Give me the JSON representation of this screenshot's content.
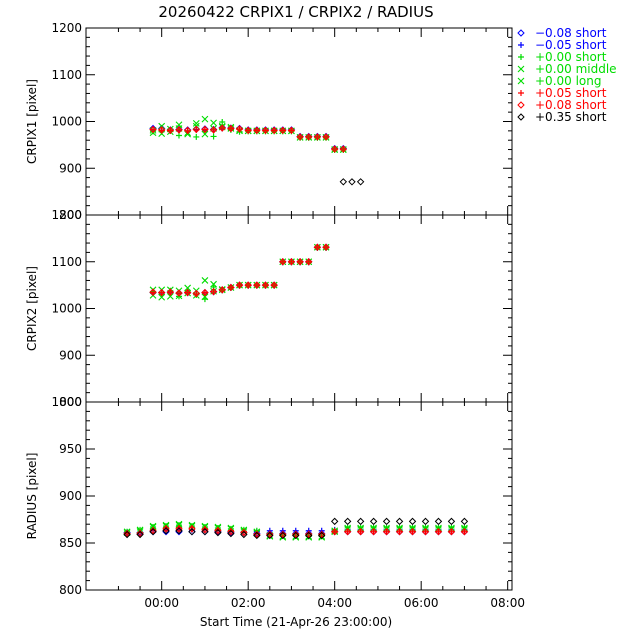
{
  "title": "20260422 CRPIX1 / CRPIX2 / RADIUS",
  "xlabel": "Start Time (21-Apr-26 23:00:00)",
  "x_tick_labels": [
    "00:00",
    "02:00",
    "04:00",
    "06:00",
    "08:00"
  ],
  "legend": [
    {
      "marker": "diamond",
      "label": "−0.08 short",
      "color": "#0000ff"
    },
    {
      "marker": "plus",
      "label": "−0.05 short",
      "color": "#0000ff"
    },
    {
      "marker": "plus",
      "label": "+0.00 short",
      "color": "#00dd00"
    },
    {
      "marker": "cross",
      "label": "+0.00 middle",
      "color": "#00dd00"
    },
    {
      "marker": "cross",
      "label": "+0.00 long",
      "color": "#00dd00"
    },
    {
      "marker": "plus",
      "label": "+0.05 short",
      "color": "#ff0000"
    },
    {
      "marker": "diamond",
      "label": "+0.08 short",
      "color": "#ff0000"
    },
    {
      "marker": "diamond",
      "label": "+0.35 short",
      "color": "#000000"
    }
  ],
  "chart_data": [
    {
      "type": "scatter",
      "ylabel": "CRPIX1 [pixel]",
      "x_unit": "hours after 21-Apr-26 23:00:00",
      "xlim": [
        -0.75,
        9.1
      ],
      "ylim": [
        800,
        1200
      ],
      "yticks": [
        800,
        900,
        1000,
        1100,
        1200
      ],
      "x": [
        0.8,
        1.0,
        1.2,
        1.4,
        1.6,
        1.8,
        2.0,
        2.2,
        2.4,
        2.6,
        2.8,
        3.0,
        3.2,
        3.4,
        3.6,
        3.8,
        4.0,
        4.2,
        4.4,
        4.6,
        4.8,
        5.0,
        5.2,
        5.4,
        5.6
      ],
      "series": [
        {
          "name": "−0.08 short",
          "color": "#0000ff",
          "marker": "diamond",
          "values": [
            985,
            985,
            982,
            983,
            982,
            984,
            984,
            983,
            987,
            986,
            985,
            982,
            982,
            982,
            982,
            982,
            982,
            968,
            968,
            968,
            968,
            942,
            942,
            null,
            null
          ]
        },
        {
          "name": "−0.05 short",
          "color": "#0000ff",
          "marker": "plus",
          "values": [
            982,
            981,
            980,
            981,
            980,
            983,
            982,
            982,
            985,
            984,
            983,
            981,
            981,
            981,
            981,
            981,
            981,
            967,
            967,
            967,
            967,
            941,
            941,
            null,
            null
          ]
        },
        {
          "name": "+0.00 short",
          "color": "#00dd00",
          "marker": "plus",
          "values": [
            979,
            978,
            980,
            970,
            979,
            967,
            979,
            968,
            999,
            982,
            978,
            979,
            979,
            979,
            979,
            979,
            979,
            965,
            965,
            965,
            965,
            939,
            939,
            null,
            null
          ]
        },
        {
          "name": "+0.00 middle",
          "color": "#00dd00",
          "marker": "cross",
          "values": [
            981,
            990,
            978,
            993,
            976,
            990,
            1005,
            985,
            988,
            985,
            980,
            980,
            980,
            980,
            980,
            980,
            980,
            966,
            966,
            966,
            966,
            940,
            940,
            null,
            null
          ]
        },
        {
          "name": "+0.00 long",
          "color": "#00dd00",
          "marker": "cross",
          "values": [
            976,
            974,
            984,
            985,
            973,
            996,
            973,
            997,
            990,
            988,
            981,
            980,
            980,
            980,
            980,
            980,
            980,
            966,
            966,
            966,
            966,
            940,
            940,
            null,
            null
          ]
        },
        {
          "name": "+0.05 short",
          "color": "#ff0000",
          "marker": "plus",
          "values": [
            983,
            981,
            981,
            982,
            980,
            982,
            983,
            982,
            986,
            985,
            984,
            981,
            981,
            981,
            981,
            981,
            981,
            967,
            967,
            967,
            967,
            941,
            941,
            null,
            null
          ]
        },
        {
          "name": "+0.08 short",
          "color": "#ff0000",
          "marker": "diamond",
          "values": [
            983,
            982,
            981,
            982,
            981,
            983,
            983,
            982,
            986,
            985,
            984,
            981,
            981,
            981,
            981,
            981,
            981,
            967,
            967,
            967,
            967,
            941,
            941,
            null,
            null
          ]
        },
        {
          "name": "+0.35 short",
          "color": "#000000",
          "marker": "diamond",
          "values": [
            null,
            null,
            null,
            null,
            null,
            null,
            null,
            null,
            null,
            null,
            null,
            null,
            null,
            null,
            null,
            null,
            null,
            null,
            null,
            null,
            null,
            null,
            871,
            871,
            871
          ]
        }
      ]
    },
    {
      "type": "scatter",
      "ylabel": "CRPIX2 [pixel]",
      "x_unit": "hours after 21-Apr-26 23:00:00",
      "xlim": [
        -0.75,
        9.1
      ],
      "ylim": [
        800,
        1200
      ],
      "yticks": [
        800,
        900,
        1000,
        1100,
        1200
      ],
      "x": [
        0.8,
        1.0,
        1.2,
        1.4,
        1.6,
        1.8,
        2.0,
        2.2,
        2.4,
        2.6,
        2.8,
        3.0,
        3.2,
        3.4,
        3.6,
        3.8,
        4.0,
        4.2,
        4.4,
        4.6,
        4.8,
        5.0,
        5.2
      ],
      "series": [
        {
          "name": "−0.08 short",
          "color": "#0000ff",
          "marker": "diamond",
          "values": [
            1034,
            1034,
            1035,
            1033,
            1034,
            1032,
            1034,
            1036,
            1040,
            1045,
            1050,
            1050,
            1050,
            1050,
            1050,
            1100,
            1100,
            1100,
            1100,
            1131,
            1131,
            null,
            null
          ]
        },
        {
          "name": "−0.05 short",
          "color": "#0000ff",
          "marker": "plus",
          "values": [
            1033,
            1033,
            1034,
            1032,
            1033,
            1031,
            1033,
            1035,
            1039,
            1044,
            1049,
            1049,
            1049,
            1049,
            1049,
            1099,
            1099,
            1099,
            1099,
            1130,
            1130,
            null,
            null
          ]
        },
        {
          "name": "+0.00 short",
          "color": "#00dd00",
          "marker": "plus",
          "values": [
            1036,
            1030,
            1038,
            1026,
            1036,
            1029,
            1020,
            1046,
            1039,
            1044,
            1049,
            1049,
            1049,
            1049,
            1049,
            1099,
            1099,
            1099,
            1099,
            1130,
            1130,
            null,
            null
          ]
        },
        {
          "name": "+0.00 middle",
          "color": "#00dd00",
          "marker": "cross",
          "values": [
            1028,
            1040,
            1026,
            1038,
            1033,
            1028,
            1060,
            1037,
            1040,
            1045,
            1050,
            1050,
            1050,
            1050,
            1050,
            1100,
            1100,
            1100,
            1100,
            1131,
            1131,
            null,
            null
          ]
        },
        {
          "name": "+0.00 long",
          "color": "#00dd00",
          "marker": "cross",
          "values": [
            1040,
            1024,
            1040,
            1027,
            1044,
            1038,
            1025,
            1052,
            1041,
            1045,
            1050,
            1050,
            1050,
            1050,
            1050,
            1100,
            1100,
            1100,
            1100,
            1131,
            1131,
            null,
            null
          ]
        },
        {
          "name": "+0.05 short",
          "color": "#ff0000",
          "marker": "plus",
          "values": [
            1034,
            1034,
            1035,
            1033,
            1034,
            1031,
            1034,
            1036,
            1040,
            1045,
            1050,
            1050,
            1050,
            1050,
            1050,
            1100,
            1100,
            1100,
            1100,
            1131,
            1131,
            null,
            null
          ]
        },
        {
          "name": "+0.08 short",
          "color": "#ff0000",
          "marker": "diamond",
          "values": [
            1035,
            1034,
            1035,
            1033,
            1034,
            1032,
            1034,
            1036,
            1040,
            1045,
            1050,
            1050,
            1050,
            1050,
            1050,
            1100,
            1100,
            1100,
            1100,
            1131,
            1131,
            null,
            null
          ]
        }
      ]
    },
    {
      "type": "scatter",
      "ylabel": "RADIUS [pixel]",
      "x_unit": "hours after 21-Apr-26 23:00:00",
      "xlim": [
        -0.75,
        9.1
      ],
      "ylim": [
        800,
        1000
      ],
      "yticks": [
        800,
        850,
        900,
        950,
        1000
      ],
      "x": [
        0.2,
        0.5,
        0.8,
        1.1,
        1.4,
        1.7,
        2.0,
        2.3,
        2.6,
        2.9,
        3.2,
        3.5,
        3.8,
        4.1,
        4.4,
        4.7,
        5.0,
        5.3,
        5.6,
        5.9,
        6.2,
        6.5,
        6.8,
        7.1,
        7.4,
        7.7,
        8.0
      ],
      "series": [
        {
          "name": "−0.08 short",
          "color": "#0000ff",
          "marker": "diamond",
          "values": [
            861,
            861,
            862,
            862,
            862,
            862,
            862,
            862,
            861,
            861,
            860,
            860,
            860,
            860,
            860,
            860,
            862,
            862,
            862,
            862,
            862,
            862,
            862,
            862,
            862,
            862,
            862
          ]
        },
        {
          "name": "−0.05 short",
          "color": "#0000ff",
          "marker": "plus",
          "values": [
            860,
            861,
            863,
            864,
            864,
            864,
            864,
            863,
            862,
            862,
            862,
            863,
            863,
            863,
            863,
            863,
            864,
            864,
            864,
            864,
            864,
            864,
            864,
            864,
            864,
            864,
            864
          ]
        },
        {
          "name": "+0.00 short",
          "color": "#00dd00",
          "marker": "plus",
          "values": [
            862,
            864,
            867,
            868,
            869,
            868,
            867,
            866,
            865,
            864,
            863,
            859,
            858,
            858,
            857,
            857,
            863,
            866,
            866,
            866,
            866,
            866,
            866,
            866,
            866,
            866,
            866
          ]
        },
        {
          "name": "+0.00 middle",
          "color": "#00dd00",
          "marker": "cross",
          "values": [
            862,
            864,
            868,
            869,
            870,
            869,
            868,
            867,
            866,
            864,
            862,
            858,
            857,
            857,
            857,
            857,
            863,
            866,
            866,
            866,
            866,
            866,
            866,
            866,
            866,
            866,
            866
          ]
        },
        {
          "name": "+0.00 long",
          "color": "#00dd00",
          "marker": "cross",
          "values": [
            861,
            863,
            867,
            868,
            869,
            868,
            867,
            866,
            865,
            863,
            861,
            857,
            856,
            856,
            856,
            856,
            862,
            865,
            865,
            865,
            865,
            865,
            865,
            865,
            865,
            865,
            865
          ]
        },
        {
          "name": "+0.05 short",
          "color": "#ff0000",
          "marker": "plus",
          "values": [
            860,
            861,
            864,
            866,
            866,
            866,
            865,
            864,
            863,
            862,
            860,
            860,
            860,
            860,
            860,
            860,
            862,
            862,
            862,
            862,
            862,
            862,
            862,
            862,
            862,
            862,
            862
          ]
        },
        {
          "name": "+0.08 short",
          "color": "#ff0000",
          "marker": "diamond",
          "values": [
            860,
            860,
            863,
            865,
            865,
            865,
            864,
            863,
            862,
            861,
            859,
            859,
            859,
            859,
            859,
            859,
            862,
            862,
            862,
            862,
            862,
            862,
            862,
            862,
            862,
            862,
            862
          ]
        },
        {
          "name": "+0.35 short",
          "color": "#000000",
          "marker": "diamond",
          "values": [
            859,
            859,
            862,
            863,
            863,
            862,
            862,
            861,
            860,
            859,
            858,
            858,
            858,
            858,
            858,
            858,
            873,
            873,
            873,
            873,
            873,
            873,
            873,
            873,
            873,
            873,
            873
          ]
        }
      ]
    }
  ]
}
